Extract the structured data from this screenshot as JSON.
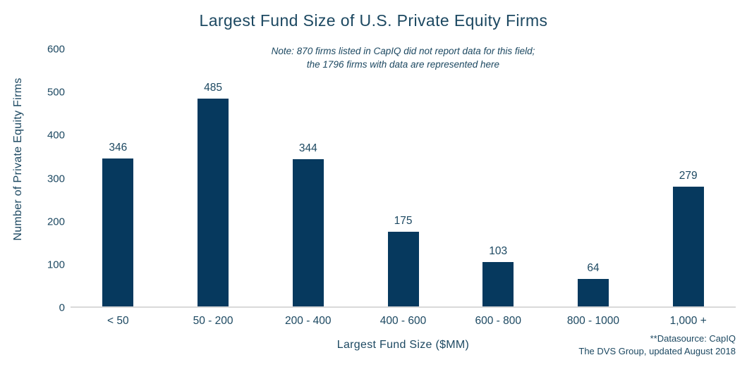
{
  "title": "Largest Fund Size of U.S. Private Equity Firms",
  "note": {
    "line1": "Note: 870 firms listed in CapIQ did not report data for this field;",
    "line2": "the 1796 firms with data are represented here"
  },
  "source": {
    "line1": "**Datasource: CapIQ",
    "line2": "The DVS Group, updated August 2018"
  },
  "chart_data": {
    "type": "bar",
    "categories": [
      "< 50",
      "50 - 200",
      "200 - 400",
      "400 - 600",
      "600 - 800",
      "800 - 1000",
      "1,000 +"
    ],
    "values": [
      346,
      485,
      344,
      175,
      103,
      64,
      279
    ],
    "title": "Largest Fund Size of U.S. Private Equity Firms",
    "xlabel": "Largest Fund Size ($MM)",
    "ylabel": "Number of Private Equity Firms",
    "ylim": [
      0,
      600
    ],
    "yticks": [
      0,
      100,
      200,
      300,
      400,
      500,
      600
    ],
    "grid": false,
    "legend": "none",
    "bar_labels": true
  },
  "colors": {
    "bar": "#06395E",
    "text": "#1C4861",
    "axis_line": "#D9D9D9"
  }
}
